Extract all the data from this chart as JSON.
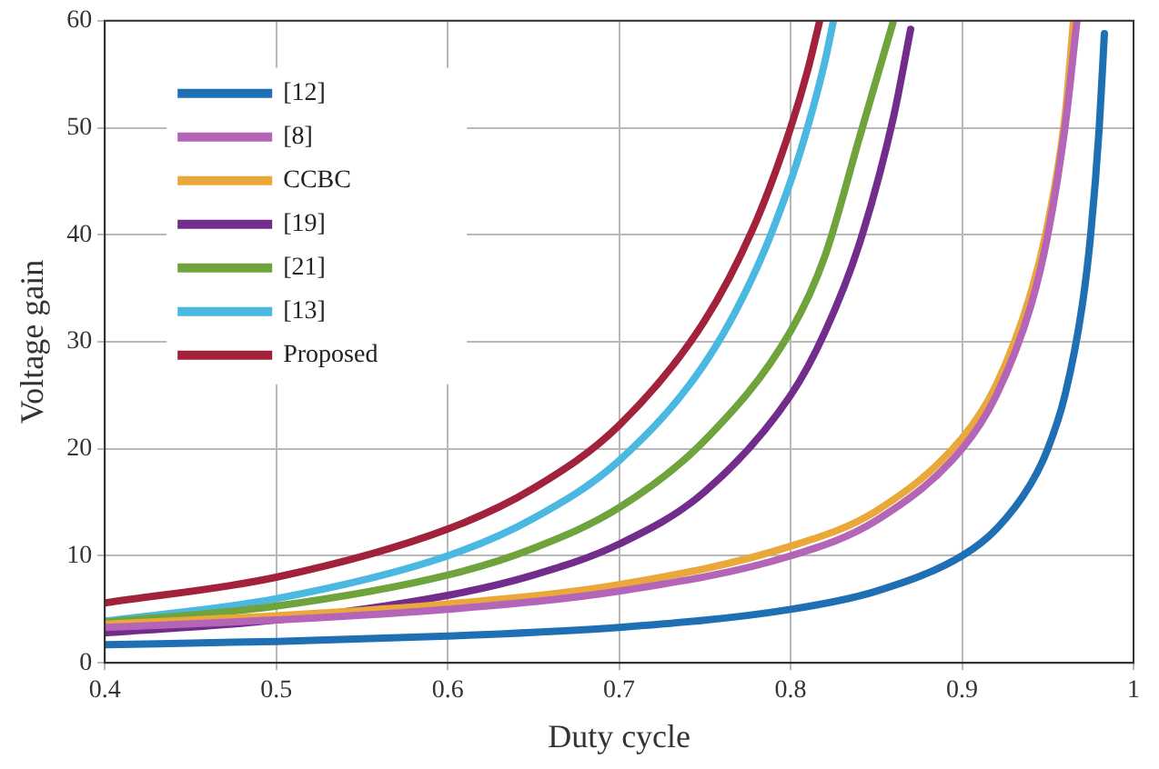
{
  "chart_data": {
    "type": "line",
    "xlabel": "Duty cycle",
    "ylabel": "Voltage gain",
    "xlim": [
      0.4,
      1
    ],
    "xticks": [
      0.4,
      0.5,
      0.6,
      0.7,
      0.8,
      0.9,
      1
    ],
    "ylim": [
      0,
      60
    ],
    "yticks": [
      0,
      10,
      20,
      30,
      40,
      50,
      60
    ],
    "grid": true,
    "legend": "top left",
    "marker": "none",
    "line_style": "solid",
    "series": [
      {
        "name": "[12]",
        "color": "#1f6fb4",
        "x": [
          0.4,
          0.5,
          0.6,
          0.7,
          0.8,
          0.85,
          0.9,
          0.92,
          0.94,
          0.95,
          0.96,
          0.97,
          0.975,
          0.98,
          0.983
        ],
        "values": [
          1.7,
          2,
          2.5,
          3.3,
          5,
          6.7,
          10,
          12.5,
          16.7,
          20,
          25,
          33.3,
          40,
          50,
          58.8
        ]
      },
      {
        "name": "[8]",
        "color": "#b565b8",
        "x": [
          0.4,
          0.5,
          0.6,
          0.7,
          0.8,
          0.85,
          0.9,
          0.92,
          0.94,
          0.95,
          0.96,
          0.967
        ],
        "values": [
          3.3,
          4,
          5,
          6.7,
          10,
          13.3,
          20,
          25,
          33.3,
          40,
          50,
          60
        ]
      },
      {
        "name": "CCBC",
        "color": "#eba83a",
        "x": [
          0.4,
          0.5,
          0.6,
          0.7,
          0.8,
          0.85,
          0.9,
          0.92,
          0.94,
          0.95,
          0.96,
          0.965
        ],
        "values": [
          3.6,
          4.4,
          5.5,
          7.3,
          10.9,
          14.2,
          21,
          26,
          34.5,
          41,
          51,
          60
        ]
      },
      {
        "name": "[19]",
        "color": "#722c8c",
        "x": [
          0.4,
          0.5,
          0.6,
          0.65,
          0.7,
          0.75,
          0.8,
          0.82,
          0.84,
          0.86,
          0.87
        ],
        "values": [
          2.8,
          4,
          6.3,
          8.2,
          11.1,
          16,
          25,
          30.9,
          39.1,
          51,
          59.2
        ]
      },
      {
        "name": "[21]",
        "color": "#6fa33c",
        "x": [
          0.4,
          0.5,
          0.6,
          0.65,
          0.7,
          0.75,
          0.8,
          0.82,
          0.84,
          0.86
        ],
        "values": [
          3.8,
          5.3,
          8.2,
          10.7,
          14.5,
          20.8,
          31,
          38,
          49,
          60
        ]
      },
      {
        "name": "[13]",
        "color": "#4bb8e2",
        "x": [
          0.4,
          0.5,
          0.6,
          0.65,
          0.7,
          0.75,
          0.78,
          0.8,
          0.81,
          0.82,
          0.825
        ],
        "values": [
          3.9,
          6,
          10,
          13.5,
          18.9,
          28,
          36.8,
          45,
          50.1,
          56.2,
          60
        ]
      },
      {
        "name": "Proposed",
        "color": "#a1223a",
        "x": [
          0.4,
          0.5,
          0.6,
          0.65,
          0.7,
          0.75,
          0.78,
          0.8,
          0.81,
          0.817
        ],
        "values": [
          5.6,
          8,
          12.5,
          16.3,
          22.2,
          32,
          41.3,
          50,
          55.4,
          60
        ]
      }
    ]
  }
}
